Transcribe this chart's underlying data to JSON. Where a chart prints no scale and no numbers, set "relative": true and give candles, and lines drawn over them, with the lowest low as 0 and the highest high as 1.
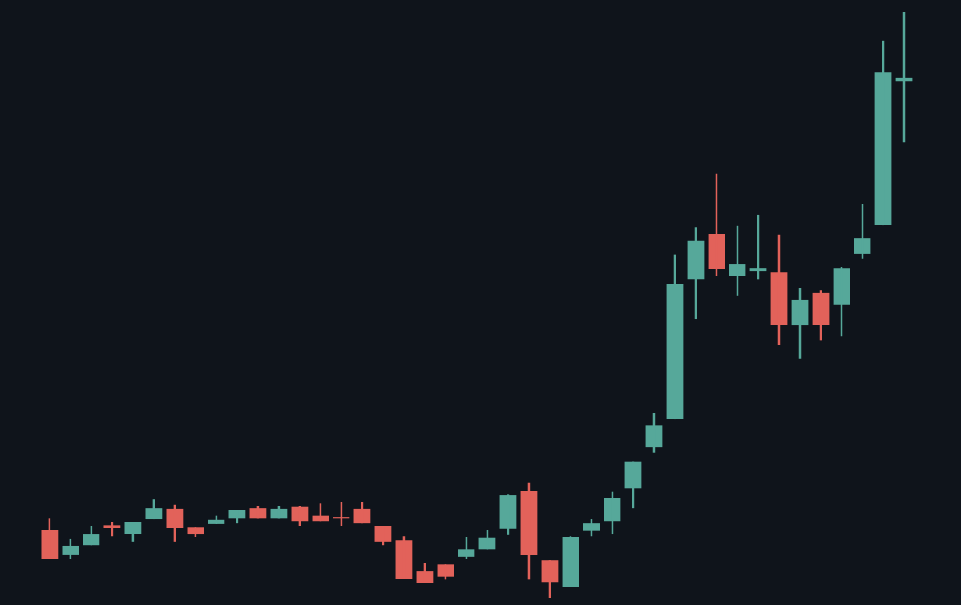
{
  "chart_data": {
    "type": "candlestick",
    "relative": true,
    "categories": [
      null,
      null,
      null,
      null,
      null,
      null,
      null,
      null,
      null,
      null,
      null,
      null,
      null,
      null,
      null,
      null,
      null,
      null,
      null,
      null,
      null,
      null,
      null,
      null,
      null,
      null,
      null,
      null,
      null,
      null,
      null,
      null,
      null,
      null,
      null,
      null,
      null,
      null,
      null,
      null,
      null,
      null
    ],
    "ohlc": [
      [
        0.116,
        0.135,
        0.066,
        0.066
      ],
      [
        0.074,
        0.1,
        0.067,
        0.089
      ],
      [
        0.09,
        0.123,
        0.09,
        0.108
      ],
      [
        0.124,
        0.129,
        0.105,
        0.119
      ],
      [
        0.109,
        0.13,
        0.096,
        0.13
      ],
      [
        0.134,
        0.168,
        0.134,
        0.153
      ],
      [
        0.152,
        0.159,
        0.096,
        0.119
      ],
      [
        0.12,
        0.12,
        0.104,
        0.108
      ],
      [
        0.126,
        0.14,
        0.126,
        0.133
      ],
      [
        0.135,
        0.15,
        0.127,
        0.15
      ],
      [
        0.153,
        0.157,
        0.135,
        0.135
      ],
      [
        0.135,
        0.157,
        0.135,
        0.152
      ],
      [
        0.155,
        0.156,
        0.122,
        0.131
      ],
      [
        0.14,
        0.161,
        0.131,
        0.131
      ],
      [
        0.138,
        0.164,
        0.123,
        0.135
      ],
      [
        0.152,
        0.164,
        0.127,
        0.127
      ],
      [
        0.123,
        0.123,
        0.09,
        0.096
      ],
      [
        0.098,
        0.105,
        0.033,
        0.033
      ],
      [
        0.045,
        0.06,
        0.026,
        0.026
      ],
      [
        0.057,
        0.057,
        0.031,
        0.036
      ],
      [
        0.07,
        0.104,
        0.066,
        0.083
      ],
      [
        0.083,
        0.115,
        0.083,
        0.103
      ],
      [
        0.118,
        0.176,
        0.107,
        0.175
      ],
      [
        0.182,
        0.196,
        0.031,
        0.073
      ],
      [
        0.064,
        0.064,
        0,
        0.027
      ],
      [
        0.019,
        0.105,
        0.019,
        0.104
      ],
      [
        0.114,
        0.134,
        0.105,
        0.127
      ],
      [
        0.131,
        0.181,
        0.108,
        0.17
      ],
      [
        0.187,
        0.233,
        0.153,
        0.233
      ],
      [
        0.257,
        0.315,
        0.248,
        0.295
      ],
      [
        0.305,
        0.586,
        0.305,
        0.535
      ],
      [
        0.544,
        0.633,
        0.476,
        0.609
      ],
      [
        0.621,
        0.724,
        0.549,
        0.561
      ],
      [
        0.549,
        0.635,
        0.516,
        0.569
      ],
      [
        0.558,
        0.654,
        0.544,
        0.562
      ],
      [
        0.555,
        0.62,
        0.431,
        0.465
      ],
      [
        0.465,
        0.529,
        0.408,
        0.509
      ],
      [
        0.52,
        0.525,
        0.44,
        0.466
      ],
      [
        0.501,
        0.565,
        0.447,
        0.562
      ],
      [
        0.587,
        0.673,
        0.579,
        0.614
      ],
      [
        0.636,
        0.951,
        0.636,
        0.897
      ],
      [
        0.882,
        1,
        0.778,
        0.888
      ]
    ],
    "colors": [
      "#e2625a",
      "#56a89a",
      "#56a89a",
      "#e2625a",
      "#56a89a",
      "#56a89a",
      "#e2625a",
      "#e2625a",
      "#56a89a",
      "#56a89a",
      "#e2625a",
      "#56a89a",
      "#e2625a",
      "#e2625a",
      "#e2625a",
      "#e2625a",
      "#e2625a",
      "#e2625a",
      "#e2625a",
      "#e2625a",
      "#56a89a",
      "#56a89a",
      "#56a89a",
      "#e2625a",
      "#e2625a",
      "#56a89a",
      "#56a89a",
      "#56a89a",
      "#56a89a",
      "#56a89a",
      "#56a89a",
      "#56a89a",
      "#e2625a",
      "#56a89a",
      "#56a89a",
      "#e2625a",
      "#56a89a",
      "#e2625a",
      "#56a89a",
      "#56a89a",
      "#56a89a",
      "#56a89a"
    ]
  }
}
